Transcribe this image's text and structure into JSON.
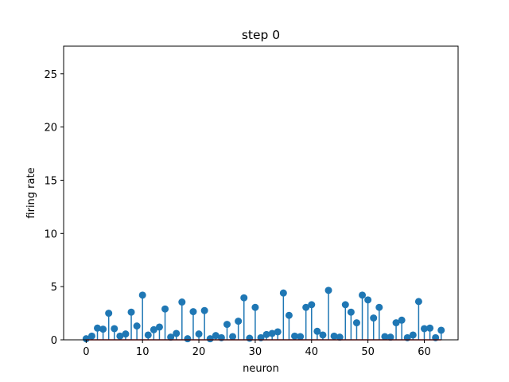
{
  "chart_data": {
    "type": "stem",
    "title": "step 0",
    "xlabel": "neuron",
    "ylabel": "firing rate",
    "xlim": [
      -4,
      66
    ],
    "ylim": [
      0,
      27.6
    ],
    "xticks": [
      0,
      10,
      20,
      30,
      40,
      50,
      60
    ],
    "yticks": [
      0,
      5,
      10,
      15,
      20,
      25
    ],
    "grid": false,
    "colors": {
      "stem": "#1f77b4",
      "marker": "#1f77b4",
      "baseline": "#d62728"
    },
    "x": [
      0,
      1,
      2,
      3,
      4,
      5,
      6,
      7,
      8,
      9,
      10,
      11,
      12,
      13,
      14,
      15,
      16,
      17,
      18,
      19,
      20,
      21,
      22,
      23,
      24,
      25,
      26,
      27,
      28,
      29,
      30,
      31,
      32,
      33,
      34,
      35,
      36,
      37,
      38,
      39,
      40,
      41,
      42,
      43,
      44,
      45,
      46,
      47,
      48,
      49,
      50,
      51,
      52,
      53,
      54,
      55,
      56,
      57,
      58,
      59,
      60,
      61,
      62,
      63
    ],
    "values": [
      0.1,
      0.35,
      1.1,
      1.0,
      2.5,
      1.05,
      0.35,
      0.55,
      2.6,
      1.3,
      4.2,
      0.45,
      0.95,
      1.2,
      2.9,
      0.25,
      0.6,
      3.55,
      0.1,
      2.65,
      0.55,
      2.75,
      0.1,
      0.4,
      0.2,
      1.45,
      0.3,
      1.75,
      3.95,
      0.15,
      3.05,
      0.2,
      0.5,
      0.6,
      0.75,
      4.4,
      2.3,
      0.35,
      0.3,
      3.05,
      3.3,
      0.8,
      0.45,
      4.65,
      0.35,
      0.25,
      3.3,
      2.6,
      1.6,
      4.2,
      3.75,
      2.05,
      3.05,
      0.3,
      0.25,
      1.6,
      1.85,
      0.2,
      0.45,
      3.6,
      1.05,
      1.1,
      0.2,
      0.9
    ]
  }
}
